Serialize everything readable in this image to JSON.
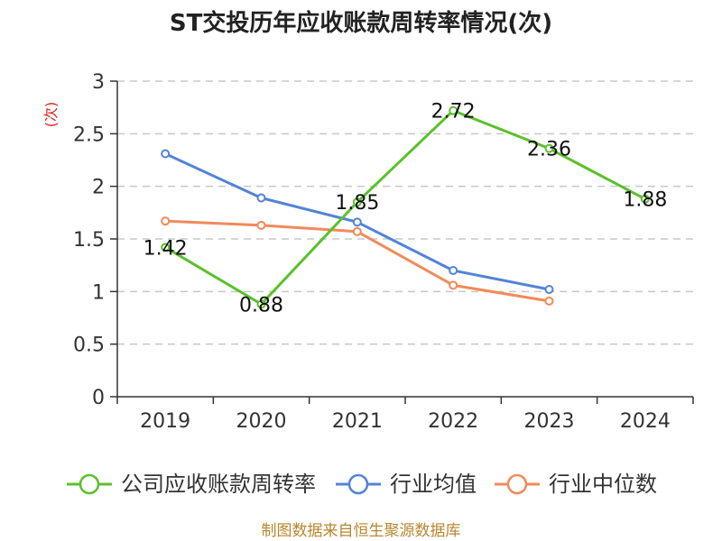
{
  "chart_data": {
    "type": "line",
    "title": "ST交投历年应收账款周转率情况(次)",
    "ylabel": "(次)",
    "xlabel": "",
    "categories": [
      "2019",
      "2020",
      "2021",
      "2022",
      "2023",
      "2024"
    ],
    "ylim": [
      0,
      3
    ],
    "yticks": [
      0,
      0.5,
      1,
      1.5,
      2,
      2.5,
      3
    ],
    "ytick_labels": [
      "0",
      "0.5",
      "1",
      "1.5",
      "2",
      "2.5",
      "3"
    ],
    "grid": true,
    "legend_position": "bottom",
    "series": [
      {
        "name": "公司应收账款周转率",
        "color": "#5cc02c",
        "values": [
          1.42,
          0.88,
          1.85,
          2.72,
          2.36,
          1.88
        ],
        "labels": [
          "1.42",
          "0.88",
          "1.85",
          "2.72",
          "2.36",
          "1.88"
        ]
      },
      {
        "name": "行业均值",
        "color": "#5383d8",
        "values": [
          2.31,
          1.89,
          1.66,
          1.2,
          1.02,
          null
        ]
      },
      {
        "name": "行业中位数",
        "color": "#f28a5a",
        "values": [
          1.67,
          1.63,
          1.57,
          1.06,
          0.91,
          null
        ]
      }
    ],
    "source": "制图数据来自恒生聚源数据库"
  }
}
